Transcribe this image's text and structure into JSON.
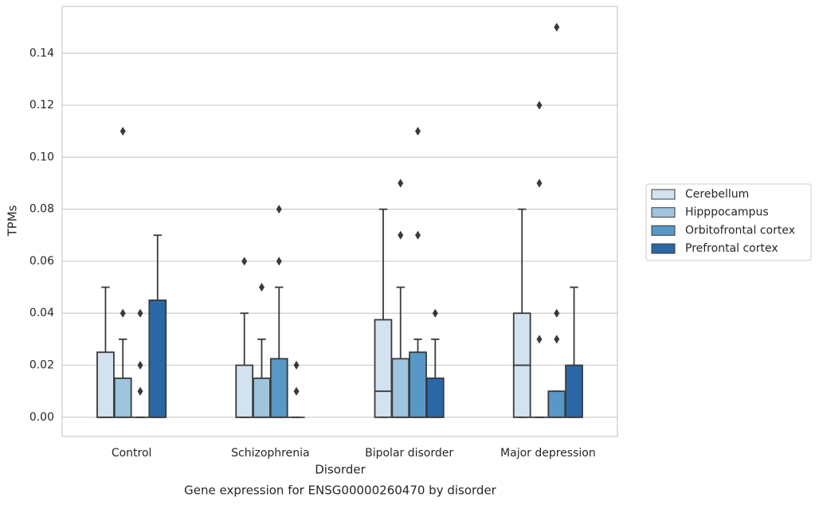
{
  "chart_data": {
    "type": "box",
    "title": "Gene expression for ENSG00000260470 by disorder",
    "xlabel": "Disorder",
    "ylabel": "TPMs",
    "categories": [
      "Control",
      "Schizophrenia",
      "Bipolar disorder",
      "Major depression"
    ],
    "ylim": [
      -0.0074,
      0.158
    ],
    "yticks": [
      {
        "value": 0,
        "label": "0.00"
      },
      {
        "value": 0.02,
        "label": "0.02"
      },
      {
        "value": 0.04,
        "label": "0.04"
      },
      {
        "value": 0.06,
        "label": "0.06"
      },
      {
        "value": 0.08,
        "label": "0.08"
      },
      {
        "value": 0.1,
        "label": "0.10"
      },
      {
        "value": 0.12,
        "label": "0.12"
      },
      {
        "value": 0.14,
        "label": "0.14"
      }
    ],
    "grid": true,
    "legend": "right",
    "series": [
      {
        "name": "Cerebellum",
        "color": "#d3e2f1",
        "values": [
          {
            "min": 0,
            "q1": 0,
            "median": 0,
            "q3": 0.025,
            "max": 0.05
          },
          {
            "min": 0,
            "q1": 0,
            "median": 0,
            "q3": 0.02,
            "max": 0.04,
            "outliers": [
              0.06
            ]
          },
          {
            "min": 0,
            "q1": 0,
            "median": 0.01,
            "q3": 0.0375,
            "max": 0.08
          },
          {
            "min": 0,
            "q1": 0,
            "median": 0.02,
            "q3": 0.04,
            "max": 0.08
          }
        ]
      },
      {
        "name": "Hipppocampus",
        "color": "#9ec4de",
        "values": [
          {
            "min": 0,
            "q1": 0,
            "median": 0,
            "q3": 0.015,
            "max": 0.03,
            "outliers": [
              0.04,
              0.11
            ]
          },
          {
            "min": 0,
            "q1": 0,
            "median": 0,
            "q3": 0.015,
            "max": 0.03,
            "outliers": [
              0.05
            ]
          },
          {
            "min": 0,
            "q1": 0,
            "median": 0,
            "q3": 0.0225,
            "max": 0.05,
            "outliers": [
              0.07,
              0.09
            ]
          },
          {
            "min": 0,
            "q1": 0,
            "median": 0,
            "q3": 0,
            "max": 0,
            "outliers": [
              0.03,
              0.09,
              0.12
            ]
          }
        ]
      },
      {
        "name": "Orbitofrontal cortex",
        "color": "#5898c6",
        "values": [
          {
            "min": 0,
            "q1": 0,
            "median": 0,
            "q3": 0,
            "max": 0,
            "outliers": [
              0.01,
              0.02,
              0.04
            ]
          },
          {
            "min": 0,
            "q1": 0,
            "median": 0,
            "q3": 0.0225,
            "max": 0.05,
            "outliers": [
              0.06,
              0.08
            ]
          },
          {
            "min": 0,
            "q1": 0,
            "median": 0,
            "q3": 0.025,
            "max": 0.03,
            "outliers": [
              0.07,
              0.11
            ]
          },
          {
            "min": 0,
            "q1": 0,
            "median": 0,
            "q3": 0.01,
            "max": 0.01,
            "outliers": [
              0.03,
              0.04,
              0.15
            ]
          }
        ]
      },
      {
        "name": "Prefrontal cortex",
        "color": "#2a67a6",
        "values": [
          {
            "min": 0,
            "q1": 0,
            "median": 0,
            "q3": 0.045,
            "max": 0.07
          },
          {
            "min": 0,
            "q1": 0,
            "median": 0,
            "q3": 0,
            "max": 0,
            "outliers": [
              0.01,
              0.02
            ]
          },
          {
            "min": 0,
            "q1": 0,
            "median": 0,
            "q3": 0.015,
            "max": 0.03,
            "outliers": [
              0.04
            ]
          },
          {
            "min": 0,
            "q1": 0,
            "median": 0,
            "q3": 0.02,
            "max": 0.05
          }
        ]
      }
    ]
  }
}
